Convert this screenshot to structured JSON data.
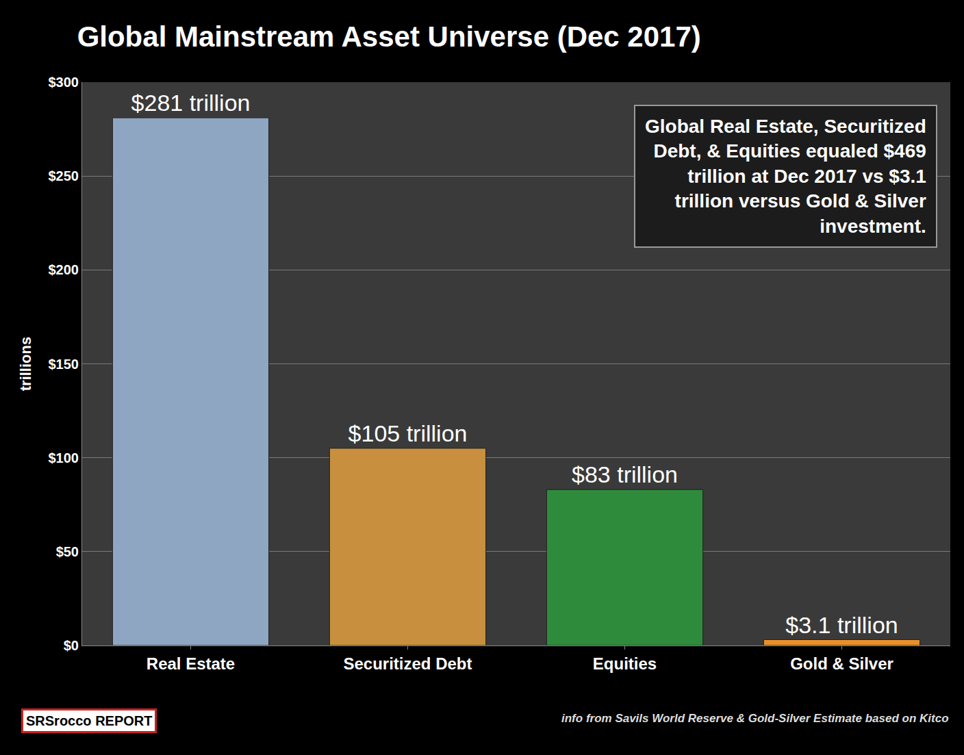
{
  "chart_data": {
    "type": "bar",
    "title": "Global Mainstream Asset Universe (Dec 2017)",
    "y_label": "trillions",
    "categories": [
      "Real Estate",
      "Securitized Debt",
      "Equities",
      "Gold & Silver"
    ],
    "values": [
      281,
      105,
      83,
      3.1
    ],
    "value_labels": [
      "$281 trillion",
      "$105 trillion",
      "$83 trillion",
      "$3.1 trillion"
    ],
    "colors": [
      "#8fa6c2",
      "#c8903e",
      "#2e8b3c",
      "#e8902a"
    ],
    "data_labels": true,
    "ylim": [
      0,
      300
    ],
    "yticks": [
      {
        "value": 0,
        "label": "$0"
      },
      {
        "value": 50,
        "label": "$50"
      },
      {
        "value": 100,
        "label": "$100"
      },
      {
        "value": 150,
        "label": "$150"
      },
      {
        "value": 200,
        "label": "$200"
      },
      {
        "value": 250,
        "label": "$250"
      },
      {
        "value": 300,
        "label": "$300"
      }
    ],
    "grid": true,
    "annotation": "Global Real Estate, Securitized Debt, & Equities equaled $469 trillion at Dec 2017 vs $3.1 trillion versus Gold & Silver investment.",
    "source": "info from Savils World Reserve & Gold-Silver Estimate based on Kitco",
    "logo": "SRSrocco REPORT"
  }
}
